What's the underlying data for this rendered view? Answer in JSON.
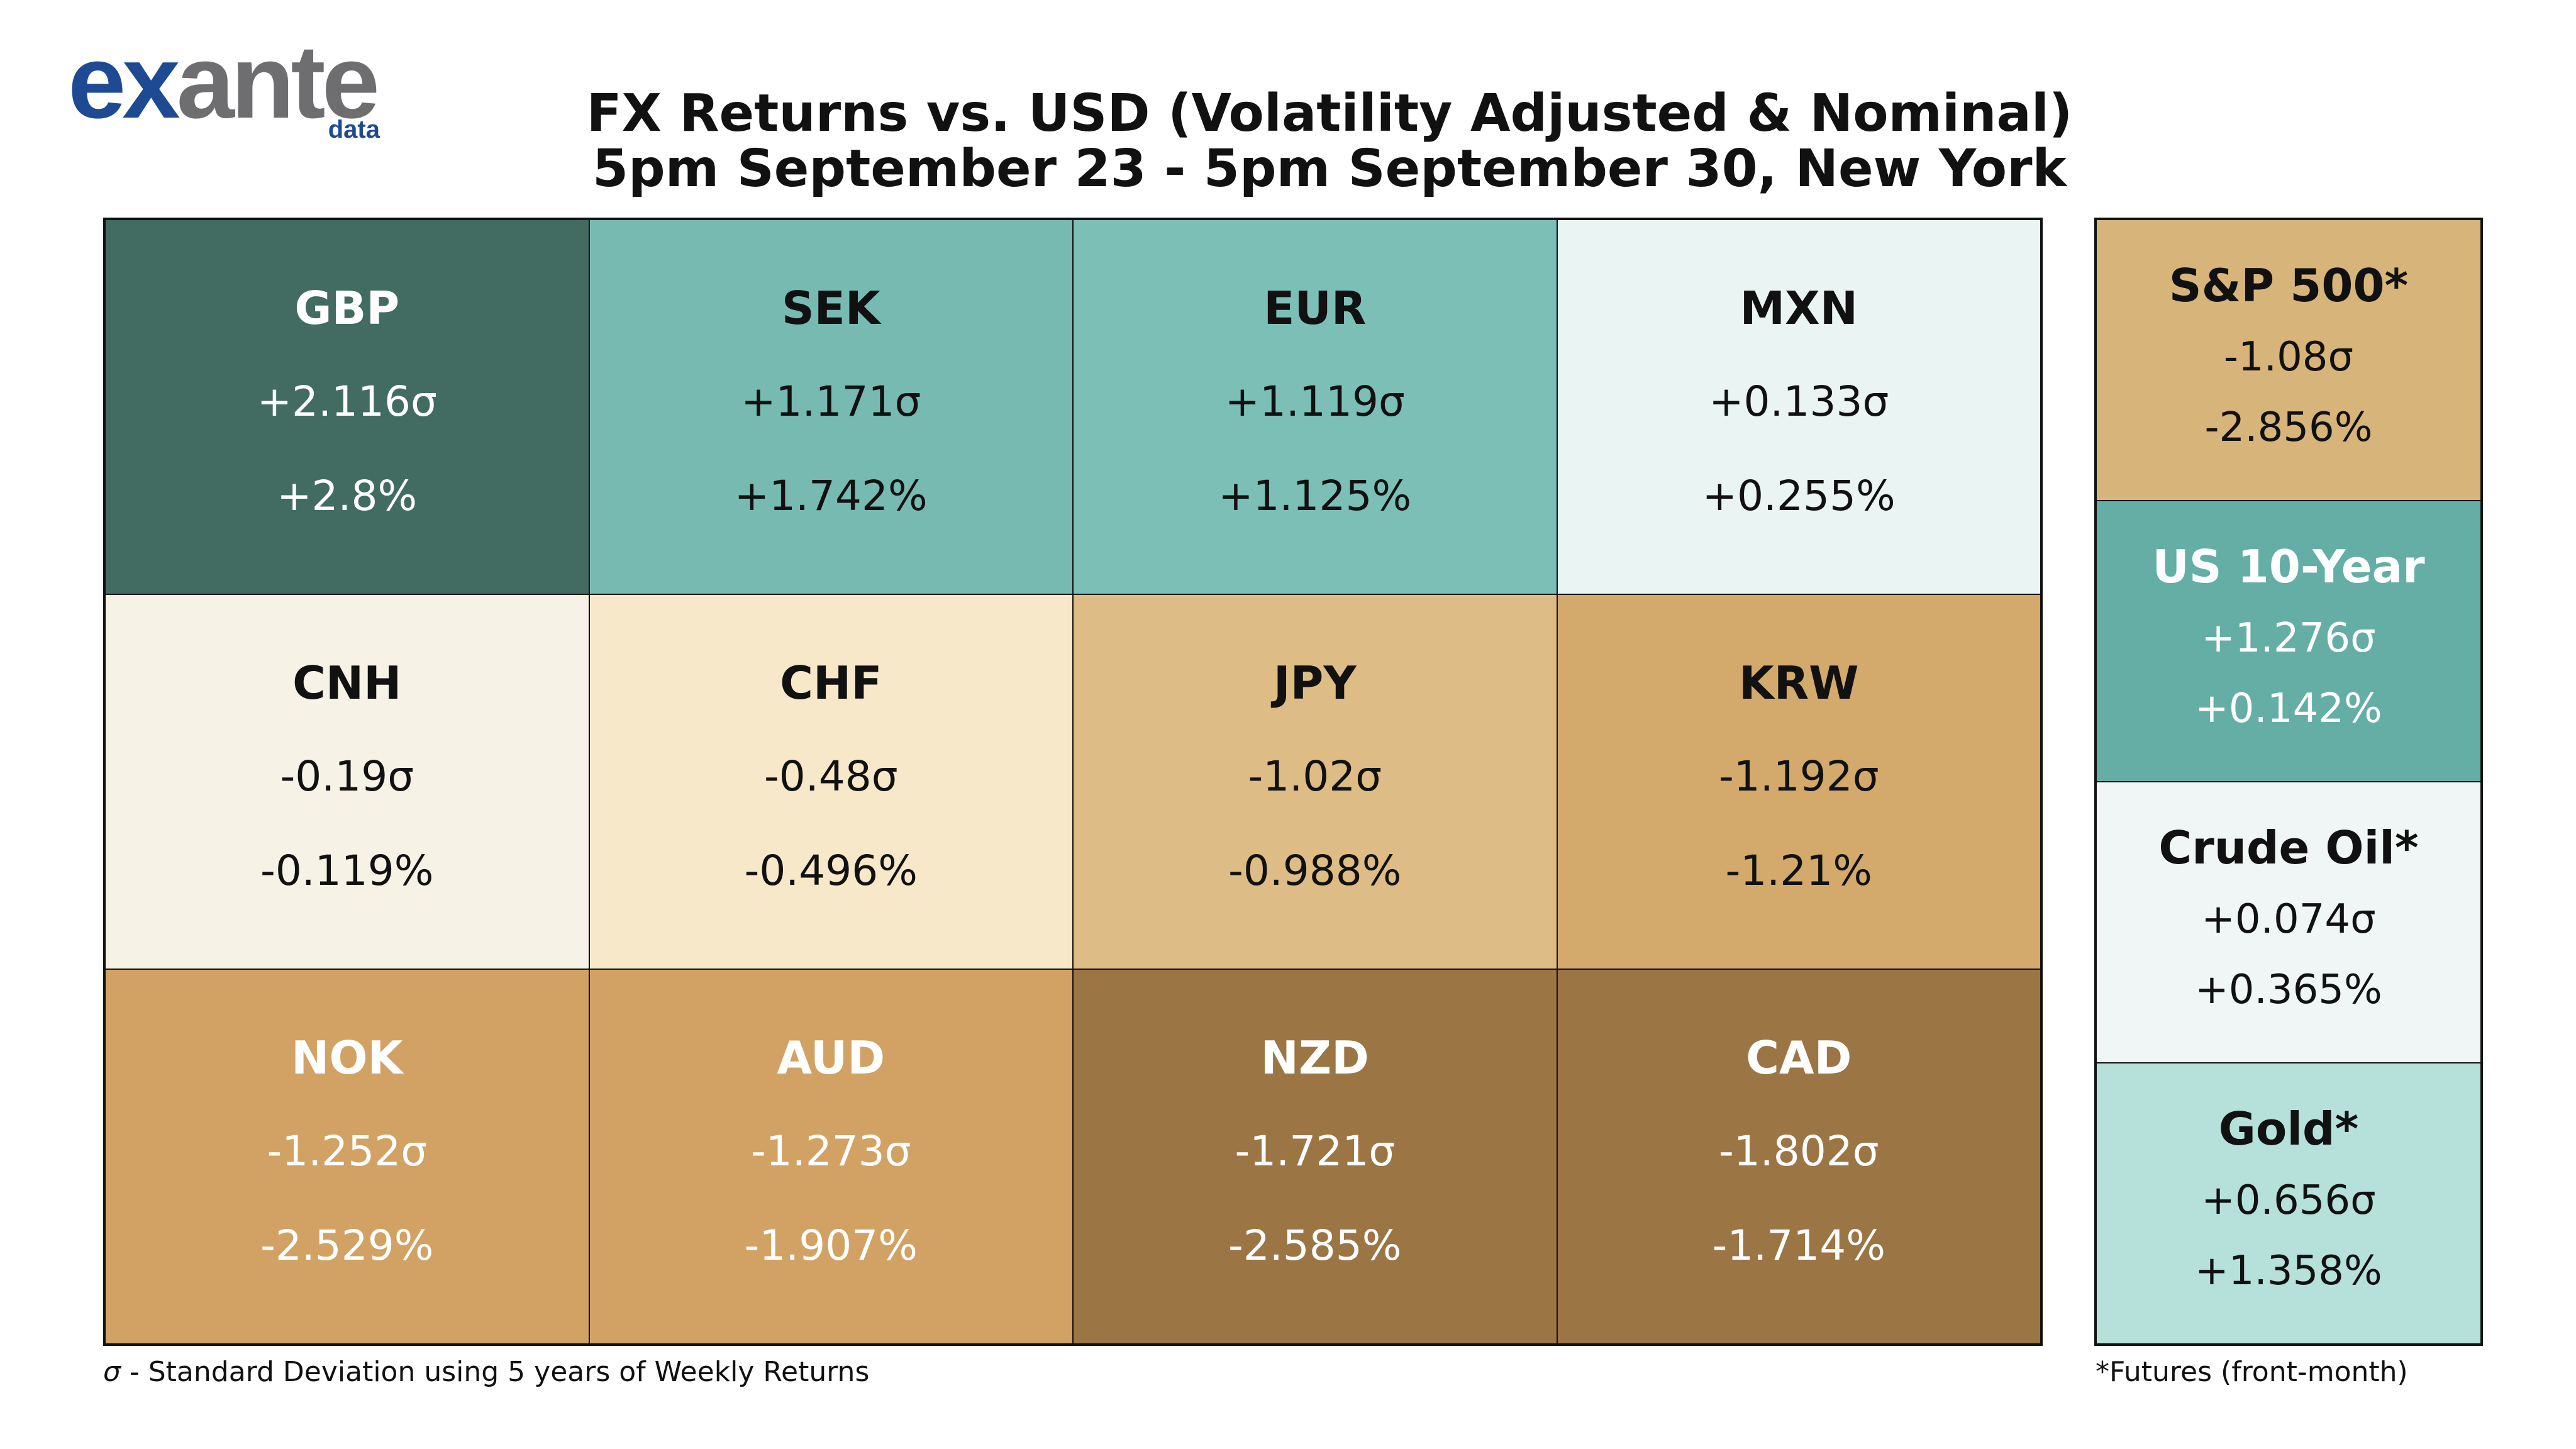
{
  "logo": {
    "main_a": "ex",
    "main_b": "ante",
    "sub": "data"
  },
  "header": {
    "title_line1": "FX Returns vs. USD (Volatility Adjusted & Nominal)",
    "title_line2": "5pm September 23 - 5pm September 30, New York"
  },
  "chart_data": {
    "type": "table",
    "title": "FX Returns vs. USD (Volatility Adjusted & Nominal)",
    "subtitle": "5pm September 23 - 5pm September 30, New York",
    "fx": [
      {
        "name": "GBP",
        "sigma": "+2.116σ",
        "pct": "+2.8%",
        "bg": "#426b62",
        "fg": "#ffffff"
      },
      {
        "name": "SEK",
        "sigma": "+1.171σ",
        "pct": "+1.742%",
        "bg": "#77bab2",
        "fg": "#111111"
      },
      {
        "name": "EUR",
        "sigma": "+1.119σ",
        "pct": "+1.125%",
        "bg": "#7cbfb7",
        "fg": "#111111"
      },
      {
        "name": "MXN",
        "sigma": "+0.133σ",
        "pct": "+0.255%",
        "bg": "#eaf4f2",
        "fg": "#111111"
      },
      {
        "name": "CNH",
        "sigma": "-0.19σ",
        "pct": "-0.119%",
        "bg": "#f6f2e6",
        "fg": "#111111"
      },
      {
        "name": "CHF",
        "sigma": "-0.48σ",
        "pct": "-0.496%",
        "bg": "#f6e8c9",
        "fg": "#111111"
      },
      {
        "name": "JPY",
        "sigma": "-1.02σ",
        "pct": "-0.988%",
        "bg": "#ddbd85",
        "fg": "#111111"
      },
      {
        "name": "KRW",
        "sigma": "-1.192σ",
        "pct": "-1.21%",
        "bg": "#d4a96c",
        "fg": "#111111"
      },
      {
        "name": "NOK",
        "sigma": "-1.252σ",
        "pct": "-2.529%",
        "bg": "#d1a263",
        "fg": "#ffffff"
      },
      {
        "name": "AUD",
        "sigma": "-1.273σ",
        "pct": "-1.907%",
        "bg": "#d1a263",
        "fg": "#ffffff"
      },
      {
        "name": "NZD",
        "sigma": "-1.721σ",
        "pct": "-2.585%",
        "bg": "#9c7545",
        "fg": "#ffffff"
      },
      {
        "name": "CAD",
        "sigma": "-1.802σ",
        "pct": "-1.714%",
        "bg": "#9c7545",
        "fg": "#ffffff"
      }
    ],
    "other_assets": [
      {
        "name": "S&P 500*",
        "sigma": "-1.08σ",
        "pct": "-2.856%",
        "bg": "#d7b47a",
        "fg": "#111111"
      },
      {
        "name": "US 10-Year",
        "sigma": "+1.276σ",
        "pct": "+0.142%",
        "bg": "#65aea6",
        "fg": "#ffffff"
      },
      {
        "name": "Crude Oil*",
        "sigma": "+0.074σ",
        "pct": "+0.365%",
        "bg": "#eff6f5",
        "fg": "#111111"
      },
      {
        "name": "Gold*",
        "sigma": "+0.656σ",
        "pct": "+1.358%",
        "bg": "#b6e0da",
        "fg": "#111111"
      }
    ]
  },
  "footnotes": {
    "left_symbol": "σ",
    "left_text": " - Standard Deviation using 5 years of Weekly Returns",
    "right_text": "*Futures (front-month)"
  }
}
